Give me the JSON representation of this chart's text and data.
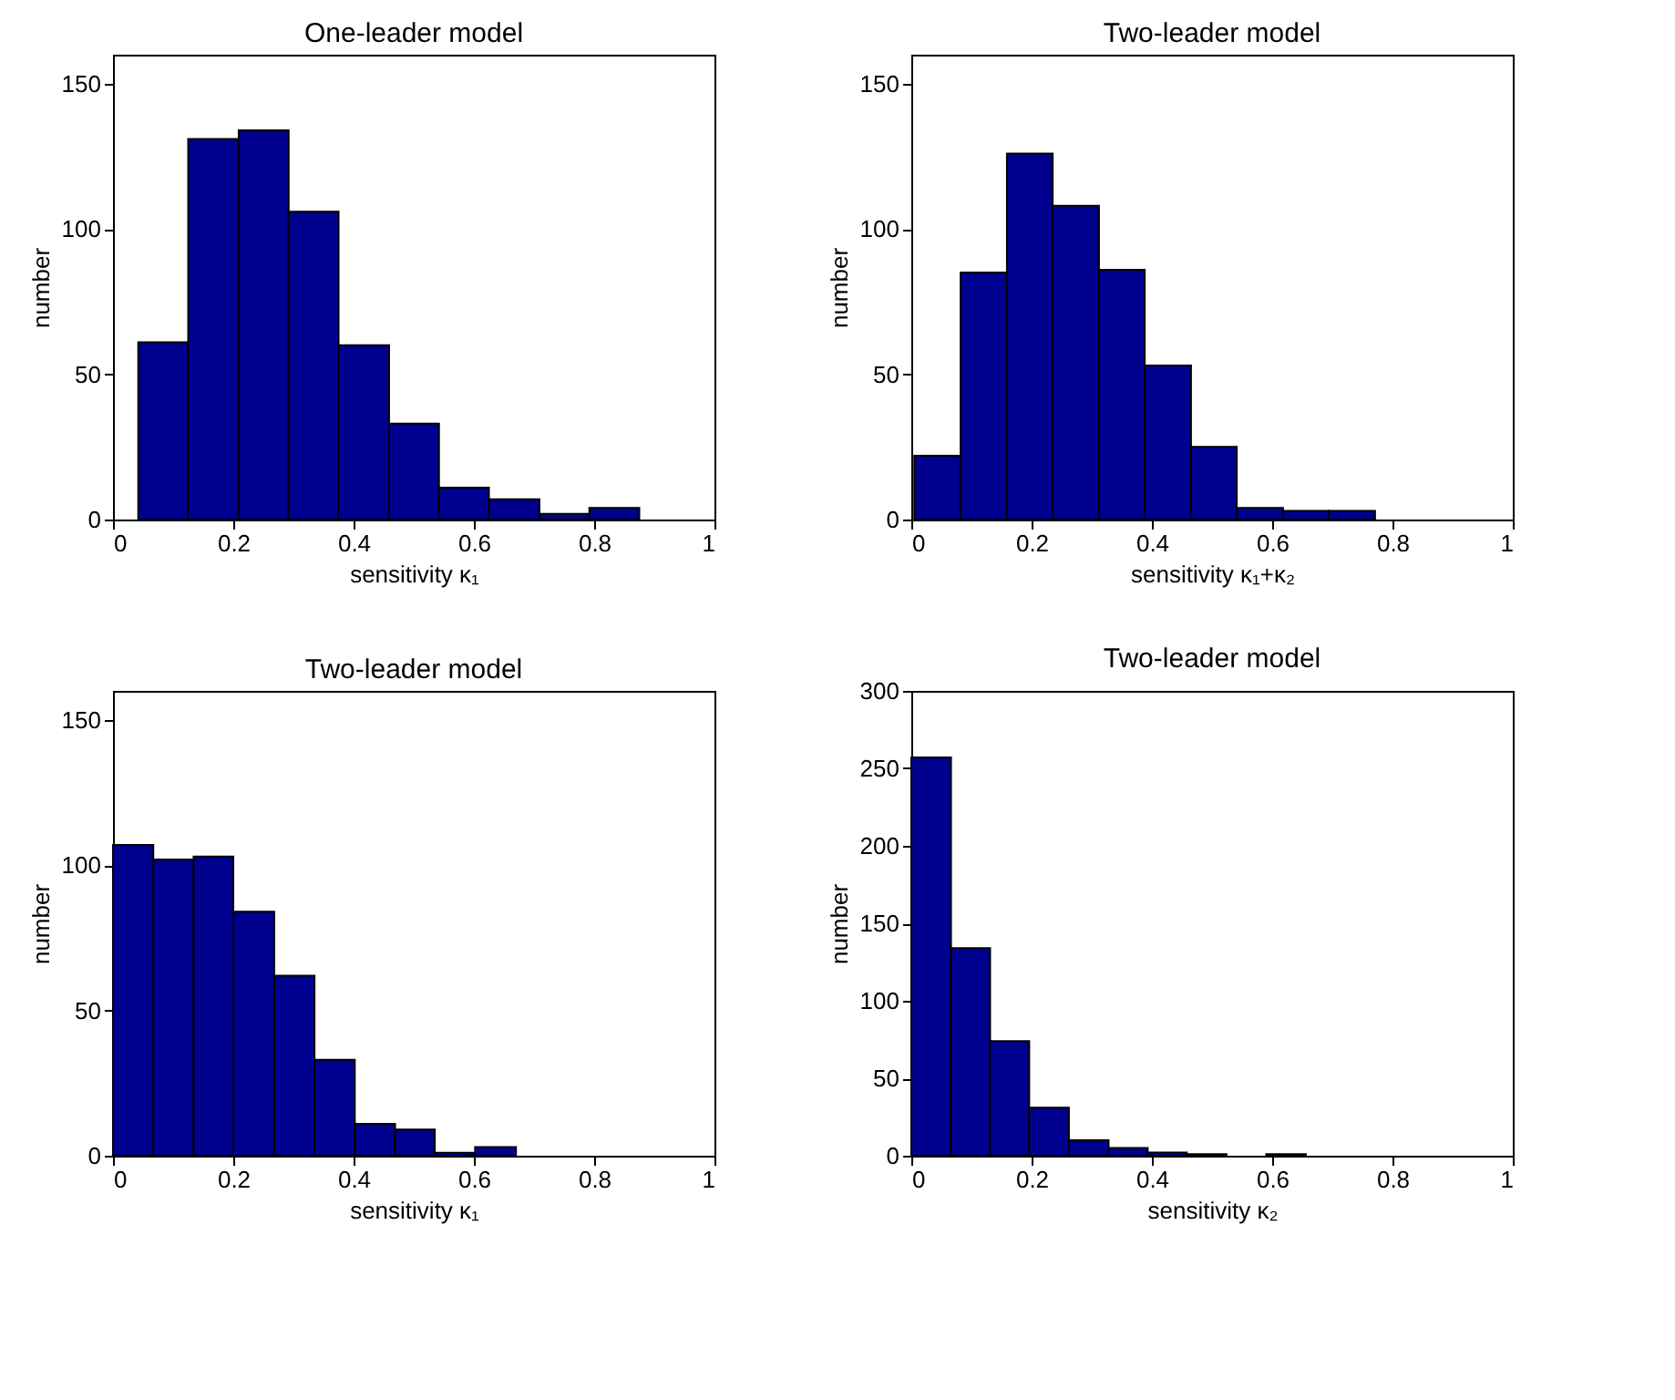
{
  "chart_data": [
    {
      "type": "histogram",
      "title": "One-leader model",
      "xlabel": "sensitivity κ₁",
      "ylabel": "number",
      "color": "#00008f",
      "bins": [
        0.042,
        0.125,
        0.209,
        0.292,
        0.375,
        0.459,
        0.542,
        0.625,
        0.709,
        0.792,
        0.875
      ],
      "values": [
        61,
        131,
        134,
        106,
        60,
        33,
        11,
        7,
        2,
        4
      ],
      "xlim": [
        0,
        1
      ],
      "xticks": [
        0,
        0.2,
        0.4,
        0.6,
        0.8,
        1
      ],
      "ylim": [
        0,
        160
      ],
      "yticks": [
        0,
        50,
        100,
        150
      ],
      "grid": false
    },
    {
      "type": "histogram",
      "title": "Two-leader model",
      "xlabel": "sensitivity κ₁+κ₂",
      "ylabel": "number",
      "color": "#00008f",
      "bins": [
        0.005,
        0.082,
        0.159,
        0.235,
        0.312,
        0.388,
        0.465,
        0.541,
        0.618,
        0.694,
        0.771
      ],
      "values": [
        22,
        85,
        126,
        108,
        86,
        53,
        25,
        4,
        3,
        3
      ],
      "xlim": [
        0,
        1
      ],
      "xticks": [
        0,
        0.2,
        0.4,
        0.6,
        0.8,
        1
      ],
      "ylim": [
        0,
        160
      ],
      "yticks": [
        0,
        50,
        100,
        150
      ],
      "grid": false
    },
    {
      "type": "histogram",
      "title": "Two-leader model",
      "xlabel": "sensitivity κ₁",
      "ylabel": "number",
      "color": "#00008f",
      "bins": [
        0,
        0.067,
        0.134,
        0.2,
        0.268,
        0.335,
        0.402,
        0.469,
        0.535,
        0.602,
        0.67
      ],
      "values": [
        107,
        102,
        103,
        84,
        62,
        33,
        11,
        9,
        1,
        3
      ],
      "xlim": [
        0,
        1
      ],
      "xticks": [
        0,
        0.2,
        0.4,
        0.6,
        0.8,
        1
      ],
      "ylim": [
        0,
        160
      ],
      "yticks": [
        0,
        50,
        100,
        150
      ],
      "grid": false
    },
    {
      "type": "histogram",
      "title": "Two-leader model",
      "xlabel": "sensitivity κ₂",
      "ylabel": "number",
      "color": "#00008f",
      "bins": [
        0,
        0.066,
        0.131,
        0.196,
        0.262,
        0.328,
        0.393,
        0.458,
        0.524,
        0.59,
        0.656
      ],
      "values": [
        257,
        134,
        74,
        31,
        10,
        5,
        2,
        1,
        0,
        1
      ],
      "xlim": [
        0,
        1
      ],
      "xticks": [
        0,
        0.2,
        0.4,
        0.6,
        0.8,
        1
      ],
      "ylim": [
        0,
        300
      ],
      "yticks": [
        0,
        50,
        100,
        150,
        200,
        250,
        300
      ],
      "grid": false
    }
  ]
}
